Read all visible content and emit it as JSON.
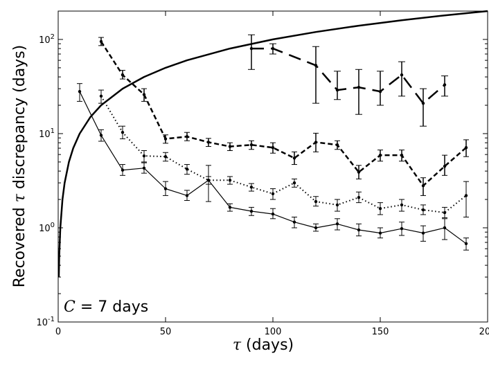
{
  "chart_data": {
    "type": "line",
    "xlabel_symbol": "τ",
    "xlabel_text": " (days)",
    "ylabel_pre": "Recovered ",
    "ylabel_symbol": "τ",
    "ylabel_post": " discrepancy (days)",
    "annotation_symbol": "C",
    "annotation_text": " = 7 days",
    "xlim": [
      0,
      200
    ],
    "ylim": [
      0.1,
      200
    ],
    "yscale": "log",
    "x_ticks": [
      0,
      50,
      100,
      150,
      200
    ],
    "x_tick_labels": [
      "0",
      "50",
      "100",
      "150",
      "200"
    ],
    "y_ticks": [
      {
        "value": 0.1,
        "base": "10",
        "exp": "-1"
      },
      {
        "value": 1,
        "base": "10",
        "exp": "0"
      },
      {
        "value": 10,
        "base": "10",
        "exp": "1"
      },
      {
        "value": 100,
        "base": "10",
        "exp": "2"
      }
    ],
    "series": [
      {
        "name": "reference y = tau",
        "style": "reference",
        "x": [
          0.3,
          0.5,
          1,
          2,
          3,
          5,
          7,
          10,
          15,
          20,
          30,
          40,
          50,
          60,
          80,
          100,
          120,
          140,
          160,
          180,
          200
        ],
        "y": [
          0.3,
          0.5,
          1,
          2,
          3,
          5,
          7,
          10,
          15,
          20,
          30,
          40,
          50,
          60,
          80,
          100,
          120,
          140,
          160,
          180,
          200
        ]
      },
      {
        "name": "solid",
        "style": "solid",
        "x": [
          10,
          20,
          30,
          40,
          50,
          60,
          70,
          80,
          90,
          100,
          110,
          120,
          130,
          140,
          150,
          160,
          170,
          180,
          190
        ],
        "y": [
          28,
          9.6,
          4.1,
          4.3,
          2.6,
          2.2,
          3.2,
          1.65,
          1.5,
          1.4,
          1.15,
          1.0,
          1.1,
          0.95,
          0.88,
          0.98,
          0.88,
          1.0,
          0.68
        ],
        "lo": [
          22,
          8.3,
          3.6,
          3.8,
          2.2,
          1.95,
          1.9,
          1.5,
          1.35,
          1.25,
          1.0,
          0.92,
          0.95,
          0.82,
          0.78,
          0.83,
          0.72,
          0.75,
          0.58
        ],
        "hi": [
          34,
          11,
          4.7,
          4.9,
          3.1,
          2.5,
          4.6,
          1.8,
          1.65,
          1.6,
          1.3,
          1.1,
          1.25,
          1.1,
          1.0,
          1.15,
          1.05,
          1.25,
          0.78
        ]
      },
      {
        "name": "dotted",
        "style": "dotted",
        "x": [
          20,
          30,
          40,
          50,
          60,
          70,
          80,
          90,
          100,
          110,
          120,
          130,
          140,
          150,
          160,
          170,
          180,
          190
        ],
        "y": [
          25,
          10.3,
          5.8,
          5.7,
          4.2,
          3.2,
          3.2,
          2.7,
          2.3,
          3.0,
          1.9,
          1.75,
          2.1,
          1.6,
          1.75,
          1.55,
          1.45,
          2.2
        ],
        "lo": [
          21,
          8.8,
          5.0,
          5.1,
          3.7,
          2.9,
          2.9,
          2.45,
          2.0,
          2.7,
          1.7,
          1.5,
          1.85,
          1.38,
          1.5,
          1.38,
          1.28,
          1.3
        ],
        "hi": [
          29,
          12,
          6.6,
          6.3,
          4.7,
          3.5,
          3.5,
          2.95,
          2.6,
          3.3,
          2.15,
          2.0,
          2.4,
          1.85,
          2.0,
          1.75,
          1.65,
          3.1
        ]
      },
      {
        "name": "dashed",
        "style": "dashed",
        "x": [
          20,
          30,
          40,
          50,
          60,
          70,
          80,
          90,
          100,
          110,
          120,
          130,
          140,
          150,
          160,
          170,
          180,
          190
        ],
        "y": [
          95,
          42,
          26,
          8.8,
          9.3,
          8.1,
          7.3,
          7.6,
          7.1,
          5.5,
          8.1,
          7.6,
          3.9,
          5.9,
          5.9,
          2.8,
          4.5,
          7.1
        ],
        "lo": [
          86,
          38,
          22,
          7.9,
          8.4,
          7.3,
          6.6,
          6.8,
          6.2,
          4.7,
          6.4,
          6.8,
          3.3,
          5.1,
          5.1,
          2.2,
          3.6,
          5.7
        ],
        "hi": [
          105,
          47,
          30,
          9.7,
          10.3,
          8.9,
          8.0,
          8.4,
          8.0,
          6.4,
          10.1,
          8.4,
          4.6,
          6.7,
          6.7,
          3.4,
          5.9,
          8.6
        ]
      },
      {
        "name": "long-dashed",
        "style": "longdash",
        "x": [
          90,
          100,
          120,
          130,
          140,
          150,
          160,
          170,
          180
        ],
        "y": [
          80,
          80,
          53,
          29,
          31,
          28,
          42,
          21,
          33
        ],
        "lo": [
          48,
          70,
          21,
          23,
          16,
          20,
          25,
          12,
          25
        ],
        "hi": [
          112,
          90,
          84,
          46,
          48,
          46,
          58,
          30,
          41
        ]
      }
    ]
  }
}
